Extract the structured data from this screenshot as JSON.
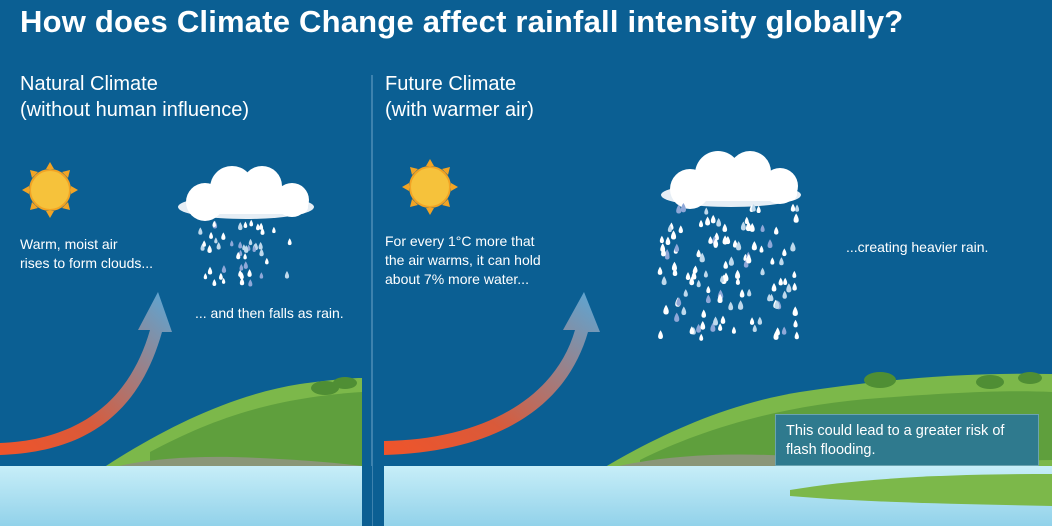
{
  "title": "How does Climate Change affect rainfall intensity globally?",
  "panels": [
    {
      "heading_line1": "Natural Climate",
      "heading_line2": "(without human influence)",
      "caption_rise": "Warm, moist air\nrises to form clouds...",
      "caption_rain": "... and then falls as rain."
    },
    {
      "heading_line1": "Future Climate",
      "heading_line2": "(with warmer air)",
      "caption_rise": "For every 1°C more that\nthe air warms, it can hold\nabout 7% more water...",
      "caption_rain": "...creating heavier rain.",
      "callout": "This could lead to a greater risk of flash flooding."
    }
  ],
  "icons": {
    "sun": "sun-icon",
    "cloud": "cloud-icon",
    "raindrops": "raindrops-icon",
    "arrow": "warm-air-arrow-icon",
    "land": "hill-illustration",
    "sea": "sea-illustration"
  },
  "colors": {
    "sky": "#0b5f93",
    "sun": "#f6c23b",
    "sun_rays": "#f2a424",
    "arrow_warm": "#f0542a",
    "arrow_cool": "#5aa8d8",
    "grass": "#7cb84a",
    "sea": "#a9dff0",
    "callout_bg": "#2f7a8e"
  }
}
